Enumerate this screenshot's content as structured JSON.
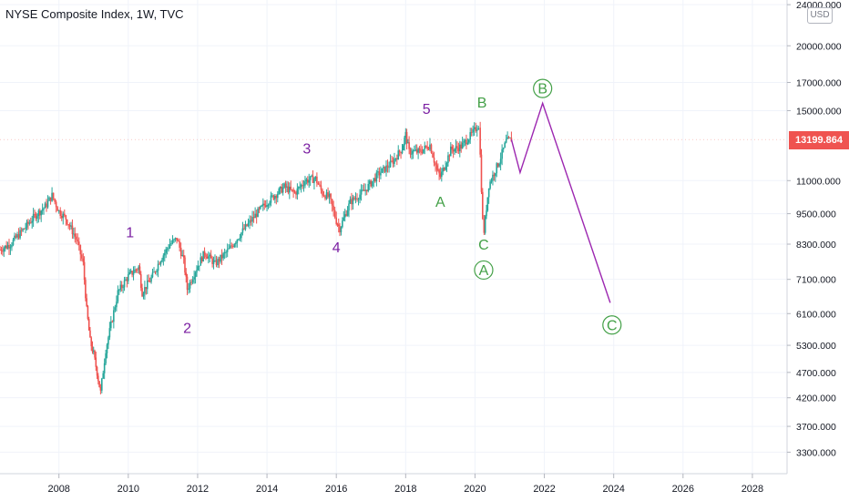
{
  "header": {
    "title": "NYSE Composite Index, 1W, TVC",
    "currency": "USD"
  },
  "current_price": {
    "label": "13199.864",
    "value": 13199.864,
    "color": "#ef5350"
  },
  "colors": {
    "up": "#26a69a",
    "down": "#ef5350",
    "projection": "#9c27b0",
    "wave_primary": "#7b1fa2",
    "wave_corrective": "#43a047"
  },
  "chart_data": {
    "type": "line",
    "y_scale": "log",
    "ylim": [
      3000,
      24500
    ],
    "xlim": [
      2006.3,
      2029.0
    ],
    "y_ticks": [
      {
        "value": 24000,
        "label": "24000.000"
      },
      {
        "value": 20000,
        "label": "20000.000"
      },
      {
        "value": 17000,
        "label": "17000.000"
      },
      {
        "value": 15000,
        "label": "15000.000"
      },
      {
        "value": 11000,
        "label": "11000.000"
      },
      {
        "value": 9500,
        "label": "9500.000"
      },
      {
        "value": 8300,
        "label": "8300.000"
      },
      {
        "value": 7100,
        "label": "7100.000"
      },
      {
        "value": 6100,
        "label": "6100.000"
      },
      {
        "value": 5300,
        "label": "5300.000"
      },
      {
        "value": 4700,
        "label": "4700.000"
      },
      {
        "value": 4200,
        "label": "4200.000"
      },
      {
        "value": 3700,
        "label": "3700.000"
      },
      {
        "value": 3300,
        "label": "3300.000"
      }
    ],
    "x_ticks": [
      {
        "value": 2008,
        "label": "2008"
      },
      {
        "value": 2010,
        "label": "2010"
      },
      {
        "value": 2012,
        "label": "2012"
      },
      {
        "value": 2014,
        "label": "2014"
      },
      {
        "value": 2016,
        "label": "2016"
      },
      {
        "value": 2018,
        "label": "2018"
      },
      {
        "value": 2020,
        "label": "2020"
      },
      {
        "value": 2022,
        "label": "2022"
      },
      {
        "value": 2024,
        "label": "2024"
      },
      {
        "value": 2026,
        "label": "2026"
      },
      {
        "value": 2028,
        "label": "2028"
      }
    ],
    "series": [
      {
        "kind": "price",
        "points": [
          [
            2006.3,
            8100
          ],
          [
            2006.6,
            8300
          ],
          [
            2007.0,
            8900
          ],
          [
            2007.3,
            9400
          ],
          [
            2007.6,
            9800
          ],
          [
            2007.8,
            10300
          ],
          [
            2008.0,
            9600
          ],
          [
            2008.2,
            9300
          ],
          [
            2008.5,
            8500
          ],
          [
            2008.7,
            7600
          ],
          [
            2008.8,
            6200
          ],
          [
            2008.9,
            5400
          ],
          [
            2009.0,
            5100
          ],
          [
            2009.1,
            4700
          ],
          [
            2009.2,
            4300
          ],
          [
            2009.35,
            5200
          ],
          [
            2009.5,
            5800
          ],
          [
            2009.7,
            6700
          ],
          [
            2010.0,
            7200
          ],
          [
            2010.3,
            7500
          ],
          [
            2010.4,
            6700
          ],
          [
            2010.7,
            7200
          ],
          [
            2010.9,
            7700
          ],
          [
            2011.2,
            8300
          ],
          [
            2011.4,
            8500
          ],
          [
            2011.6,
            7700
          ],
          [
            2011.7,
            6800
          ],
          [
            2011.9,
            7300
          ],
          [
            2012.2,
            8000
          ],
          [
            2012.5,
            7600
          ],
          [
            2012.9,
            8100
          ],
          [
            2013.3,
            8800
          ],
          [
            2013.7,
            9500
          ],
          [
            2014.0,
            10000
          ],
          [
            2014.5,
            10700
          ],
          [
            2014.8,
            10400
          ],
          [
            2015.1,
            11000
          ],
          [
            2015.4,
            11100
          ],
          [
            2015.6,
            10400
          ],
          [
            2015.8,
            10200
          ],
          [
            2016.0,
            9200
          ],
          [
            2016.1,
            8900
          ],
          [
            2016.4,
            10000
          ],
          [
            2016.8,
            10500
          ],
          [
            2017.2,
            11300
          ],
          [
            2017.6,
            11900
          ],
          [
            2017.9,
            12700
          ],
          [
            2018.0,
            13500
          ],
          [
            2018.1,
            12500
          ],
          [
            2018.4,
            12500
          ],
          [
            2018.7,
            12900
          ],
          [
            2018.9,
            11500
          ],
          [
            2019.0,
            11200
          ],
          [
            2019.3,
            12600
          ],
          [
            2019.6,
            12800
          ],
          [
            2019.9,
            13500
          ],
          [
            2020.1,
            14100
          ],
          [
            2020.15,
            12300
          ],
          [
            2020.22,
            9200
          ],
          [
            2020.26,
            8800
          ],
          [
            2020.4,
            10800
          ],
          [
            2020.7,
            12000
          ],
          [
            2020.9,
            13100
          ],
          [
            2021.05,
            13200
          ]
        ]
      },
      {
        "kind": "projection",
        "points": [
          [
            2021.05,
            13200
          ],
          [
            2021.3,
            11400
          ],
          [
            2021.95,
            15500
          ],
          [
            2023.9,
            6400
          ]
        ]
      }
    ],
    "annotations": [
      {
        "text": "1",
        "x": 2010.05,
        "y": 8550,
        "style": "purple"
      },
      {
        "text": "2",
        "x": 2011.7,
        "y": 5600,
        "style": "purple"
      },
      {
        "text": "3",
        "x": 2015.15,
        "y": 12400,
        "style": "purple"
      },
      {
        "text": "4",
        "x": 2016.0,
        "y": 8000,
        "style": "purple"
      },
      {
        "text": "5",
        "x": 2018.6,
        "y": 14800,
        "style": "purple"
      },
      {
        "text": "A",
        "x": 2019.0,
        "y": 9800,
        "style": "green"
      },
      {
        "text": "B",
        "x": 2020.2,
        "y": 15200,
        "style": "green"
      },
      {
        "text": "C",
        "x": 2020.25,
        "y": 8100,
        "style": "green"
      }
    ],
    "circled_annotations": [
      {
        "text": "A",
        "x": 2020.25,
        "y": 7400
      },
      {
        "text": "B",
        "x": 2021.95,
        "y": 16550
      },
      {
        "text": "C",
        "x": 2023.95,
        "y": 5800
      }
    ]
  }
}
